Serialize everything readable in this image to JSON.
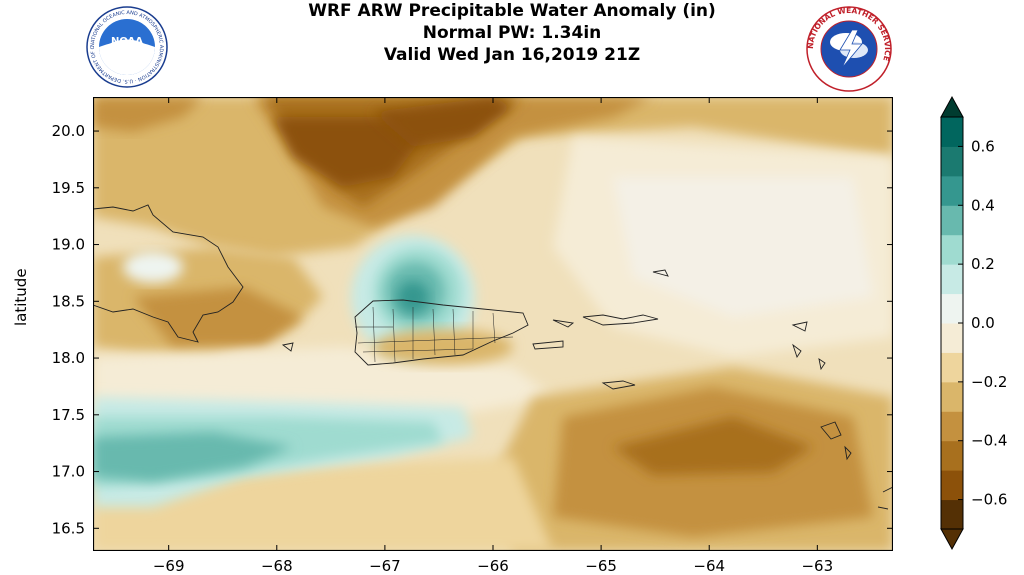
{
  "title": {
    "line1": "WRF ARW Precipitable Water Anomaly (in)",
    "line2": "Normal PW: 1.34in",
    "line3": "Valid Wed Jan 16,2019 21Z"
  },
  "logos": {
    "left": {
      "name": "NOAA",
      "text": "NOAA",
      "ring_text": "NATIONAL OCEANIC AND ATMOSPHERIC ADMINISTRATION · U.S. DEPARTMENT OF COMMERCE"
    },
    "right": {
      "name": "National Weather Service",
      "ring_text": "NATIONAL WEATHER SERVICE"
    }
  },
  "axes": {
    "ylabel": "latitude",
    "x_ticks": [
      "−69",
      "−68",
      "−67",
      "−66",
      "−65",
      "−64",
      "−63"
    ],
    "y_ticks": [
      "20.0",
      "19.5",
      "19.0",
      "18.5",
      "18.0",
      "17.5",
      "17.0",
      "16.5"
    ],
    "x_range": [
      -69.7,
      -62.3
    ],
    "y_range": [
      16.3,
      20.3
    ]
  },
  "colorbar": {
    "ticks": [
      "0.6",
      "0.4",
      "0.2",
      "0.0",
      "−0.2",
      "−0.4",
      "−0.6"
    ],
    "levels": [
      -0.7,
      -0.6,
      -0.5,
      -0.4,
      -0.3,
      -0.2,
      -0.1,
      0.0,
      0.1,
      0.2,
      0.3,
      0.4,
      0.5,
      0.6,
      0.7
    ],
    "colors": [
      "#543005",
      "#8c510a",
      "#a8701e",
      "#c4913f",
      "#dab66a",
      "#eed59d",
      "#f5ecd6",
      "#eef4f0",
      "#c7eae5",
      "#9fdbd0",
      "#68b9ae",
      "#35978f",
      "#1b7a70",
      "#01665e"
    ],
    "extend_low": "#543005",
    "extend_high": "#003c30"
  },
  "colors": {
    "dark_brown": "#8c510a",
    "mid_brown": "#c4913f",
    "tan": "#dab66a",
    "light_tan": "#eed59d",
    "cream": "#f5ecd6",
    "near_white": "#f4f0e6",
    "light_teal": "#c7eae5",
    "mid_teal": "#80cdc1",
    "teal": "#35978f",
    "dark_teal": "#01665e"
  }
}
